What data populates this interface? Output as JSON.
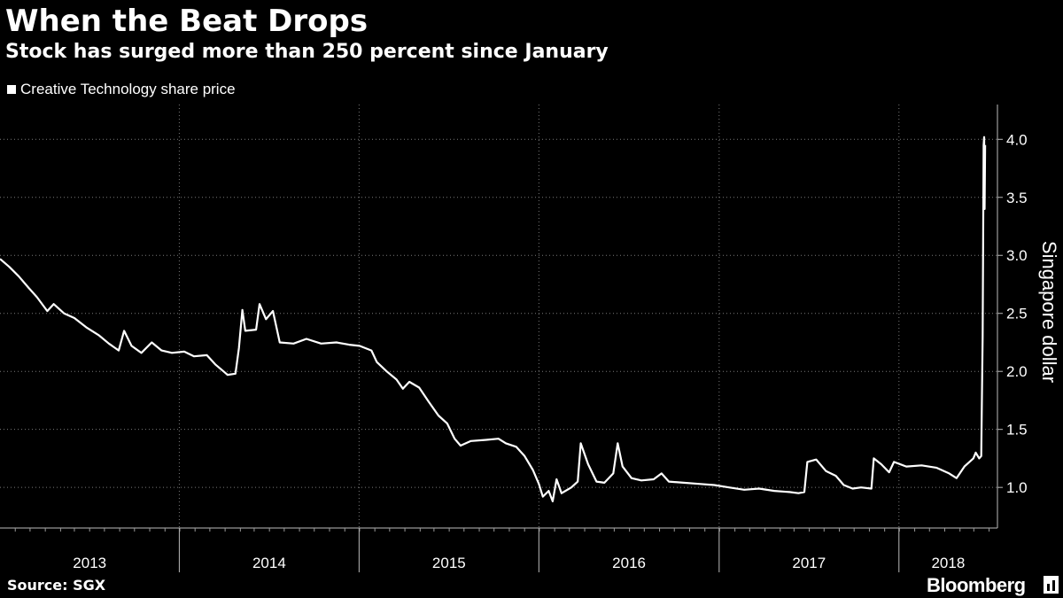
{
  "chart_data": {
    "type": "line",
    "title": "When the Beat Drops",
    "subtitle": "Stock has surged more than 250 percent since January",
    "legend": [
      "Creative Technology share price"
    ],
    "legend_position": "top-left",
    "ylabel": "Singapore dollar",
    "ylim": [
      0.65,
      4.3
    ],
    "yticks": [
      1.0,
      1.5,
      2.0,
      2.5,
      3.0,
      3.5,
      4.0
    ],
    "y_axis_side": "right",
    "grid": "dotted",
    "xlim": [
      "2012-10-01",
      "2018-04-18"
    ],
    "xticks": [
      {
        "label": "2013",
        "from": "2012-10-01",
        "to": "2013-09-30"
      },
      {
        "label": "2014",
        "from": "2013-09-30",
        "to": "2014-09-30"
      },
      {
        "label": "2015",
        "from": "2014-09-30",
        "to": "2015-09-30"
      },
      {
        "label": "2016",
        "from": "2015-09-30",
        "to": "2016-09-30"
      },
      {
        "label": "2017",
        "from": "2016-09-30",
        "to": "2017-09-30"
      },
      {
        "label": "2018",
        "from": "2017-09-30",
        "to": "2018-04-18"
      }
    ],
    "series": [
      {
        "name": "Creative Technology share price",
        "color": "#ffffff",
        "points": [
          [
            "2012-10-01",
            2.97
          ],
          [
            "2012-10-20",
            2.9
          ],
          [
            "2012-11-08",
            2.82
          ],
          [
            "2012-11-28",
            2.72
          ],
          [
            "2012-12-15",
            2.64
          ],
          [
            "2013-01-05",
            2.52
          ],
          [
            "2013-01-18",
            2.58
          ],
          [
            "2013-02-08",
            2.5
          ],
          [
            "2013-03-01",
            2.46
          ],
          [
            "2013-03-25",
            2.38
          ],
          [
            "2013-04-20",
            2.31
          ],
          [
            "2013-05-10",
            2.24
          ],
          [
            "2013-05-30",
            2.18
          ],
          [
            "2013-06-10",
            2.35
          ],
          [
            "2013-06-25",
            2.22
          ],
          [
            "2013-07-15",
            2.16
          ],
          [
            "2013-08-05",
            2.25
          ],
          [
            "2013-08-25",
            2.18
          ],
          [
            "2013-09-15",
            2.16
          ],
          [
            "2013-10-10",
            2.17
          ],
          [
            "2013-10-30",
            2.13
          ],
          [
            "2013-11-25",
            2.14
          ],
          [
            "2013-12-12",
            2.06
          ],
          [
            "2014-01-06",
            1.97
          ],
          [
            "2014-01-22",
            1.98
          ],
          [
            "2014-01-29",
            2.2
          ],
          [
            "2014-02-05",
            2.53
          ],
          [
            "2014-02-11",
            2.35
          ],
          [
            "2014-03-05",
            2.36
          ],
          [
            "2014-03-12",
            2.58
          ],
          [
            "2014-03-25",
            2.45
          ],
          [
            "2014-04-08",
            2.52
          ],
          [
            "2014-04-22",
            2.25
          ],
          [
            "2014-05-20",
            2.24
          ],
          [
            "2014-06-15",
            2.28
          ],
          [
            "2014-07-15",
            2.24
          ],
          [
            "2014-08-15",
            2.25
          ],
          [
            "2014-09-10",
            2.23
          ],
          [
            "2014-10-01",
            2.22
          ],
          [
            "2014-10-25",
            2.18
          ],
          [
            "2014-11-05",
            2.08
          ],
          [
            "2014-11-25",
            2.0
          ],
          [
            "2014-12-15",
            1.93
          ],
          [
            "2014-12-28",
            1.85
          ],
          [
            "2015-01-10",
            1.91
          ],
          [
            "2015-01-30",
            1.86
          ],
          [
            "2015-02-18",
            1.74
          ],
          [
            "2015-03-10",
            1.62
          ],
          [
            "2015-03-28",
            1.55
          ],
          [
            "2015-04-12",
            1.42
          ],
          [
            "2015-04-24",
            1.36
          ],
          [
            "2015-05-15",
            1.4
          ],
          [
            "2015-06-15",
            1.41
          ],
          [
            "2015-07-10",
            1.42
          ],
          [
            "2015-07-25",
            1.38
          ],
          [
            "2015-08-15",
            1.35
          ],
          [
            "2015-09-01",
            1.27
          ],
          [
            "2015-09-18",
            1.15
          ],
          [
            "2015-09-30",
            1.03
          ],
          [
            "2015-10-08",
            0.92
          ],
          [
            "2015-10-20",
            0.97
          ],
          [
            "2015-10-28",
            0.88
          ],
          [
            "2015-11-05",
            1.07
          ],
          [
            "2015-11-15",
            0.95
          ],
          [
            "2015-12-05",
            1.0
          ],
          [
            "2015-12-18",
            1.05
          ],
          [
            "2015-12-24",
            1.38
          ],
          [
            "2016-01-08",
            1.2
          ],
          [
            "2016-01-25",
            1.05
          ],
          [
            "2016-02-10",
            1.04
          ],
          [
            "2016-02-28",
            1.12
          ],
          [
            "2016-03-08",
            1.38
          ],
          [
            "2016-03-18",
            1.18
          ],
          [
            "2016-04-05",
            1.08
          ],
          [
            "2016-04-25",
            1.06
          ],
          [
            "2016-05-20",
            1.07
          ],
          [
            "2016-06-05",
            1.12
          ],
          [
            "2016-06-20",
            1.05
          ],
          [
            "2016-07-20",
            1.04
          ],
          [
            "2016-08-20",
            1.03
          ],
          [
            "2016-09-20",
            1.02
          ],
          [
            "2016-10-20",
            1.0
          ],
          [
            "2016-11-20",
            0.98
          ],
          [
            "2016-12-20",
            0.99
          ],
          [
            "2017-01-20",
            0.97
          ],
          [
            "2017-02-20",
            0.96
          ],
          [
            "2017-03-10",
            0.95
          ],
          [
            "2017-03-22",
            0.96
          ],
          [
            "2017-03-28",
            1.22
          ],
          [
            "2017-04-15",
            1.24
          ],
          [
            "2017-05-05",
            1.14
          ],
          [
            "2017-05-25",
            1.1
          ],
          [
            "2017-06-10",
            1.02
          ],
          [
            "2017-06-28",
            0.99
          ],
          [
            "2017-07-15",
            1.0
          ],
          [
            "2017-08-05",
            0.99
          ],
          [
            "2017-08-10",
            1.25
          ],
          [
            "2017-08-25",
            1.2
          ],
          [
            "2017-09-10",
            1.13
          ],
          [
            "2017-09-20",
            1.22
          ],
          [
            "2017-10-15",
            1.18
          ],
          [
            "2017-11-15",
            1.19
          ],
          [
            "2017-12-15",
            1.17
          ],
          [
            "2018-01-10",
            1.12
          ],
          [
            "2018-01-25",
            1.08
          ],
          [
            "2018-02-10",
            1.18
          ],
          [
            "2018-02-28",
            1.25
          ],
          [
            "2018-03-05",
            1.3
          ],
          [
            "2018-03-12",
            1.25
          ],
          [
            "2018-03-16",
            1.27
          ],
          [
            "2018-03-19",
            2.3
          ],
          [
            "2018-03-21",
            3.95
          ],
          [
            "2018-03-22",
            4.02
          ],
          [
            "2018-03-23",
            3.4
          ],
          [
            "2018-03-24",
            3.95
          ]
        ]
      }
    ]
  },
  "footer": {
    "source": "Source: SGX",
    "brand": "Bloomberg"
  }
}
